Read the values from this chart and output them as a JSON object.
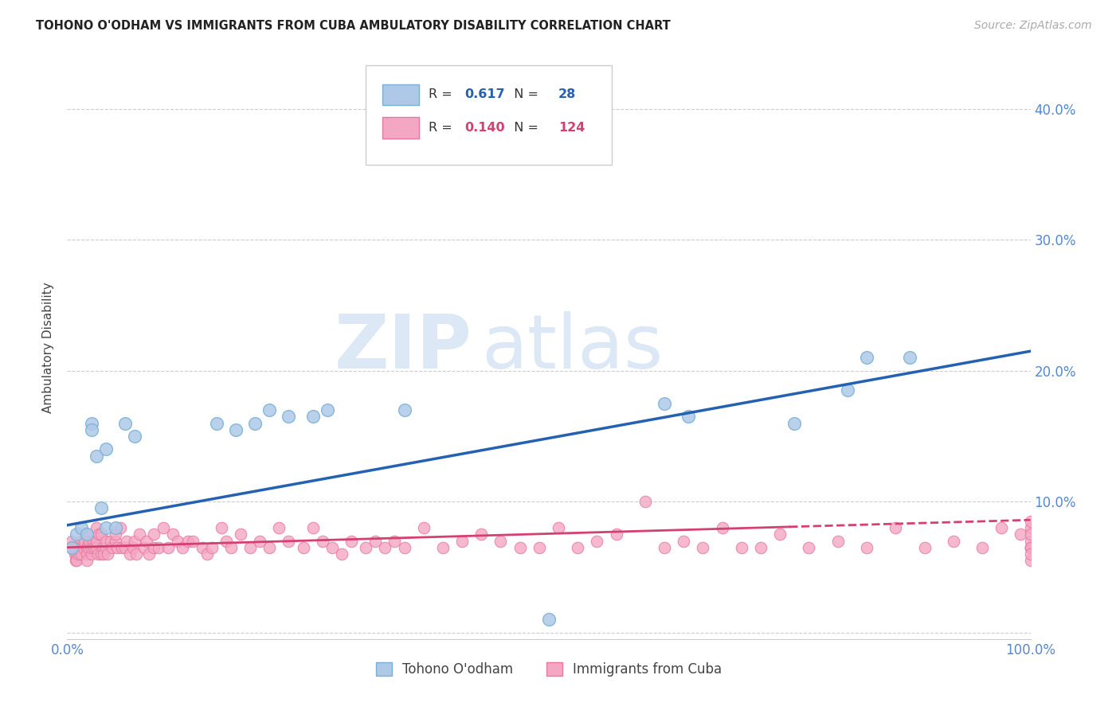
{
  "title": "TOHONO O'ODHAM VS IMMIGRANTS FROM CUBA AMBULATORY DISABILITY CORRELATION CHART",
  "source": "Source: ZipAtlas.com",
  "ylabel": "Ambulatory Disability",
  "xlim": [
    0,
    1.0
  ],
  "ylim": [
    -0.005,
    0.44
  ],
  "yticks": [
    0.0,
    0.1,
    0.2,
    0.3,
    0.4
  ],
  "ytick_labels": [
    "",
    "10.0%",
    "20.0%",
    "30.0%",
    "40.0%"
  ],
  "blue_R": "0.617",
  "blue_N": "28",
  "pink_R": "0.140",
  "pink_N": "124",
  "blue_scatter_color": "#aec9e8",
  "blue_edge_color": "#7bafd4",
  "pink_scatter_color": "#f4a7c3",
  "pink_edge_color": "#e8789f",
  "blue_line_color": "#2461b0",
  "pink_line_color": "#d44070",
  "watermark_color": "#dce8f5",
  "background_color": "#ffffff",
  "grid_color": "#cccccc",
  "tick_label_color": "#5588cc",
  "blue_x": [
    0.005,
    0.01,
    0.015,
    0.02,
    0.025,
    0.025,
    0.03,
    0.035,
    0.04,
    0.04,
    0.05,
    0.06,
    0.07,
    0.155,
    0.175,
    0.195,
    0.21,
    0.23,
    0.255,
    0.27,
    0.35,
    0.62,
    0.645,
    0.755,
    0.81,
    0.83,
    0.875,
    0.5
  ],
  "blue_y": [
    0.065,
    0.075,
    0.08,
    0.075,
    0.16,
    0.155,
    0.135,
    0.095,
    0.14,
    0.08,
    0.08,
    0.16,
    0.15,
    0.16,
    0.155,
    0.16,
    0.17,
    0.165,
    0.165,
    0.17,
    0.17,
    0.175,
    0.165,
    0.16,
    0.185,
    0.21,
    0.21,
    0.01
  ],
  "pink_x": [
    0.005,
    0.005,
    0.007,
    0.008,
    0.009,
    0.01,
    0.01,
    0.01,
    0.012,
    0.013,
    0.015,
    0.015,
    0.015,
    0.017,
    0.018,
    0.02,
    0.02,
    0.02,
    0.02,
    0.022,
    0.023,
    0.025,
    0.025,
    0.027,
    0.028,
    0.03,
    0.03,
    0.03,
    0.032,
    0.033,
    0.035,
    0.035,
    0.037,
    0.038,
    0.04,
    0.04,
    0.042,
    0.045,
    0.047,
    0.05,
    0.05,
    0.052,
    0.055,
    0.057,
    0.06,
    0.062,
    0.065,
    0.068,
    0.07,
    0.072,
    0.075,
    0.08,
    0.082,
    0.085,
    0.09,
    0.09,
    0.095,
    0.1,
    0.105,
    0.11,
    0.115,
    0.12,
    0.125,
    0.13,
    0.14,
    0.145,
    0.15,
    0.16,
    0.165,
    0.17,
    0.18,
    0.19,
    0.2,
    0.21,
    0.22,
    0.23,
    0.245,
    0.255,
    0.265,
    0.275,
    0.285,
    0.295,
    0.31,
    0.32,
    0.33,
    0.34,
    0.35,
    0.37,
    0.39,
    0.41,
    0.43,
    0.45,
    0.47,
    0.49,
    0.51,
    0.53,
    0.55,
    0.57,
    0.6,
    0.62,
    0.64,
    0.66,
    0.68,
    0.7,
    0.72,
    0.74,
    0.77,
    0.8,
    0.83,
    0.86,
    0.89,
    0.92,
    0.95,
    0.97,
    0.99,
    1.0,
    1.0,
    1.0,
    1.0,
    1.0,
    1.0,
    1.0,
    1.0,
    1.0
  ],
  "pink_y": [
    0.07,
    0.065,
    0.065,
    0.06,
    0.055,
    0.065,
    0.06,
    0.055,
    0.06,
    0.065,
    0.07,
    0.065,
    0.06,
    0.065,
    0.07,
    0.065,
    0.06,
    0.055,
    0.075,
    0.065,
    0.07,
    0.06,
    0.065,
    0.07,
    0.065,
    0.065,
    0.07,
    0.08,
    0.06,
    0.075,
    0.06,
    0.075,
    0.065,
    0.06,
    0.065,
    0.07,
    0.06,
    0.07,
    0.065,
    0.07,
    0.075,
    0.065,
    0.08,
    0.065,
    0.065,
    0.07,
    0.06,
    0.065,
    0.07,
    0.06,
    0.075,
    0.065,
    0.07,
    0.06,
    0.065,
    0.075,
    0.065,
    0.08,
    0.065,
    0.075,
    0.07,
    0.065,
    0.07,
    0.07,
    0.065,
    0.06,
    0.065,
    0.08,
    0.07,
    0.065,
    0.075,
    0.065,
    0.07,
    0.065,
    0.08,
    0.07,
    0.065,
    0.08,
    0.07,
    0.065,
    0.06,
    0.07,
    0.065,
    0.07,
    0.065,
    0.07,
    0.065,
    0.08,
    0.065,
    0.07,
    0.075,
    0.07,
    0.065,
    0.065,
    0.08,
    0.065,
    0.07,
    0.075,
    0.1,
    0.065,
    0.07,
    0.065,
    0.08,
    0.065,
    0.065,
    0.075,
    0.065,
    0.07,
    0.065,
    0.08,
    0.065,
    0.07,
    0.065,
    0.08,
    0.075,
    0.065,
    0.07,
    0.065,
    0.08,
    0.075,
    0.065,
    0.085,
    0.055,
    0.06
  ]
}
